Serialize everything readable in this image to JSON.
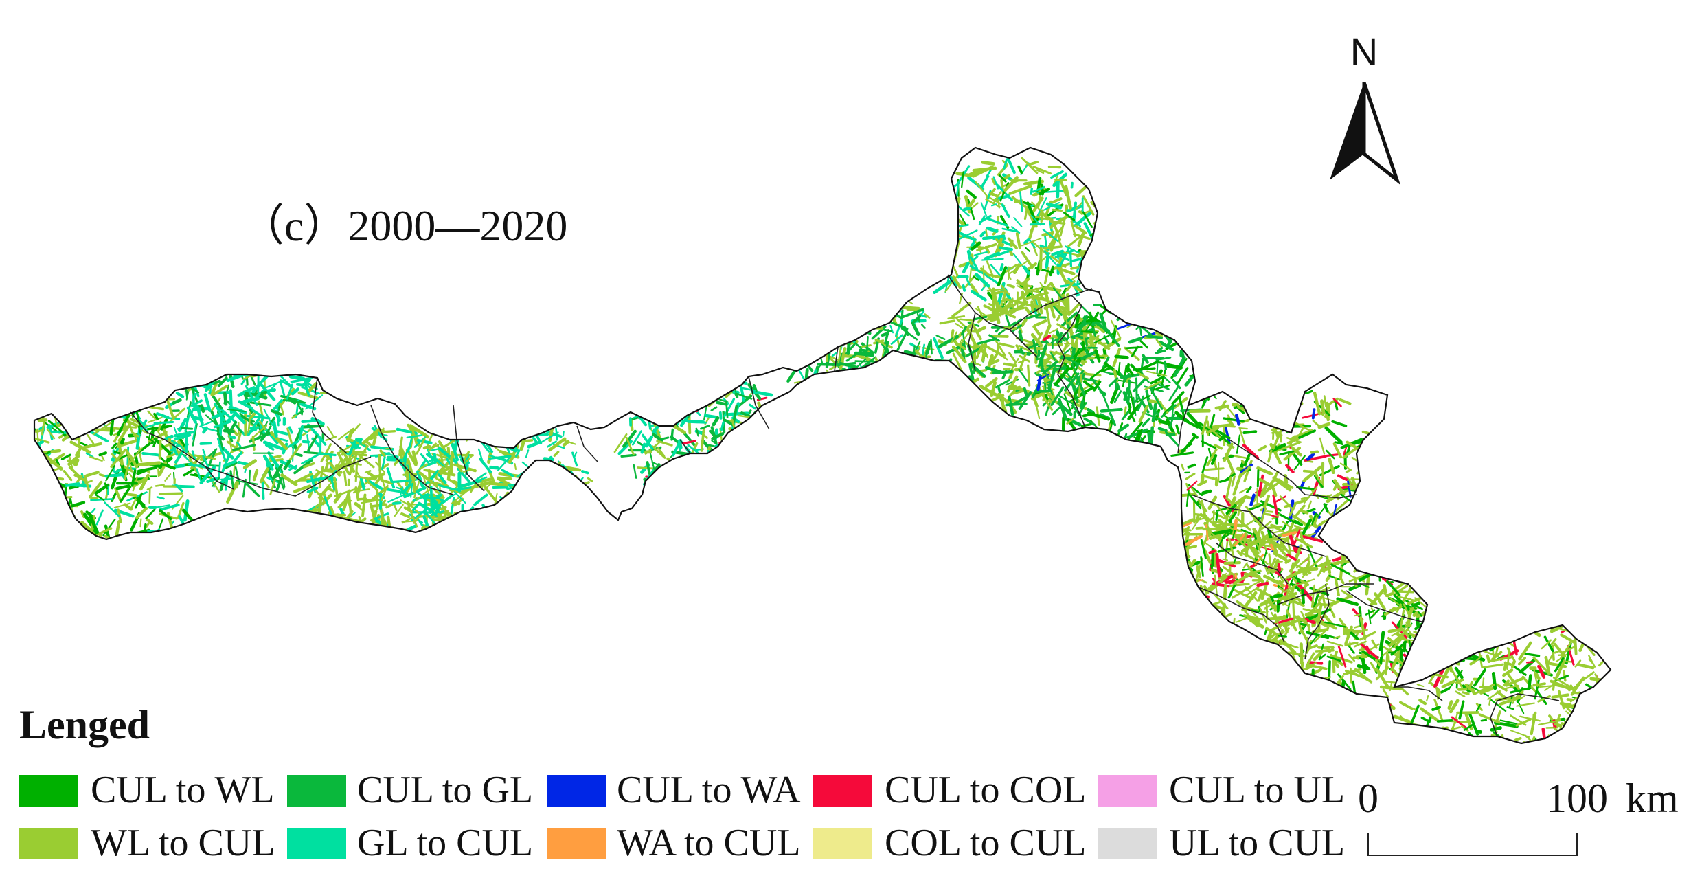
{
  "map": {
    "panel_title": "（c）2000—2020",
    "north_label": "N",
    "legend_title": "Lenged",
    "legend_items": [
      {
        "label": "CUL to WL",
        "color": "#00b000"
      },
      {
        "label": "CUL to GL",
        "color": "#0ab83c"
      },
      {
        "label": "CUL to WA",
        "color": "#0026e6"
      },
      {
        "label": "CUL to COL",
        "color": "#f50a3a"
      },
      {
        "label": "CUL to UL",
        "color": "#f5a0e6"
      },
      {
        "label": "WL to CUL",
        "color": "#9acd32"
      },
      {
        "label": "GL to CUL",
        "color": "#00e0a0"
      },
      {
        "label": "WA to CUL",
        "color": "#ff9e40"
      },
      {
        "label": "COL to CUL",
        "color": "#eeeb8c"
      },
      {
        "label": "UL to CUL",
        "color": "#dcdcdc"
      }
    ],
    "scale": {
      "start": "0",
      "end": "100",
      "unit": "km"
    }
  }
}
